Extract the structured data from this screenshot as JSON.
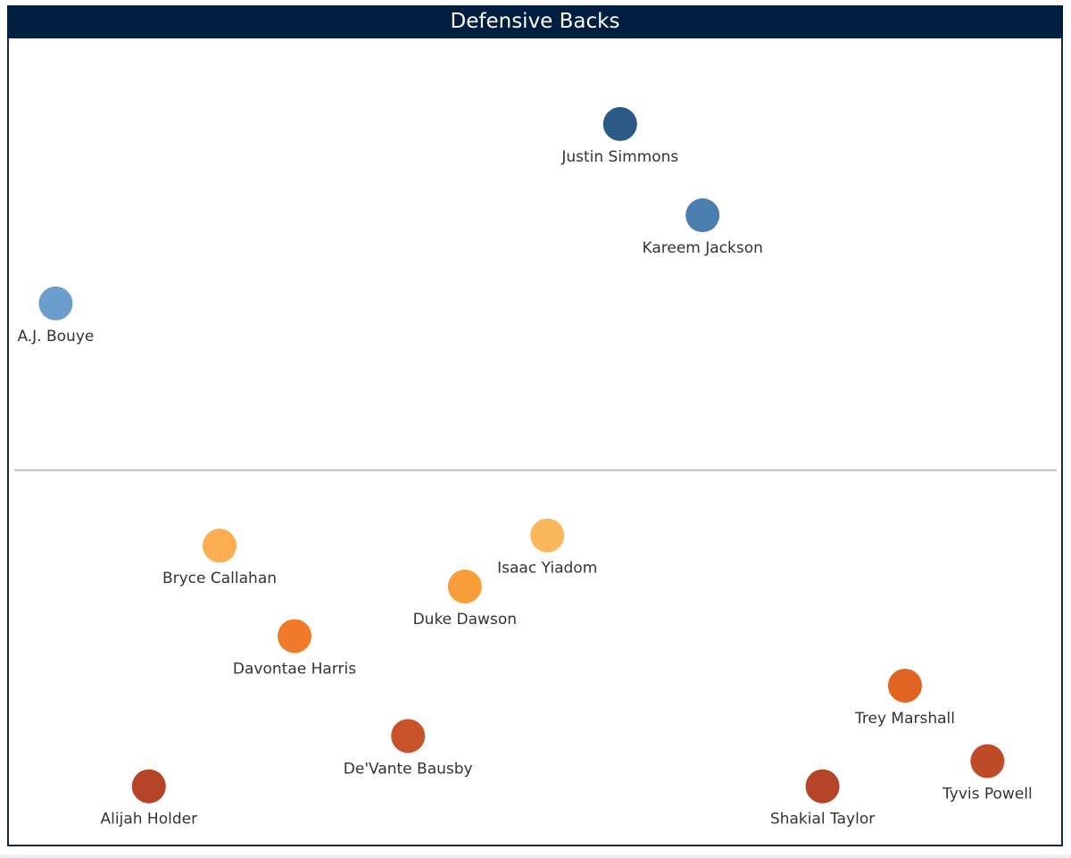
{
  "chart_data": {
    "type": "scatter",
    "title": "Defensive Backs",
    "xlabel": "",
    "ylabel": "",
    "x_range": [
      0,
      100
    ],
    "y_range": [
      0,
      100
    ],
    "reference_line_y": 46.7,
    "grid": false,
    "points": [
      {
        "name": "Justin Simmons",
        "x": 57.9,
        "y": 90.7,
        "color": "#2b5a85"
      },
      {
        "name": "Kareem Jackson",
        "x": 65.6,
        "y": 79.1,
        "color": "#4a7fb0"
      },
      {
        "name": "A.J. Bouye",
        "x": 5.2,
        "y": 67.9,
        "color": "#6b9ecb"
      },
      {
        "name": "Bryce Callahan",
        "x": 20.5,
        "y": 37.1,
        "color": "#fbae52"
      },
      {
        "name": "Isaac Yiadom",
        "x": 51.1,
        "y": 38.4,
        "color": "#fbb75c"
      },
      {
        "name": "Duke Dawson",
        "x": 43.4,
        "y": 31.9,
        "color": "#f79d3a"
      },
      {
        "name": "Davontae Harris",
        "x": 27.5,
        "y": 25.6,
        "color": "#ef7a2a"
      },
      {
        "name": "Trey Marshall",
        "x": 84.5,
        "y": 19.3,
        "color": "#e26423"
      },
      {
        "name": "De'Vante Bausby",
        "x": 38.1,
        "y": 12.9,
        "color": "#c8522a"
      },
      {
        "name": "Tyvis Powell",
        "x": 92.2,
        "y": 9.7,
        "color": "#bf4c28"
      },
      {
        "name": "Alijah Holder",
        "x": 13.9,
        "y": 6.5,
        "color": "#b44425"
      },
      {
        "name": "Shakial Taylor",
        "x": 76.8,
        "y": 6.5,
        "color": "#b44425"
      }
    ]
  }
}
